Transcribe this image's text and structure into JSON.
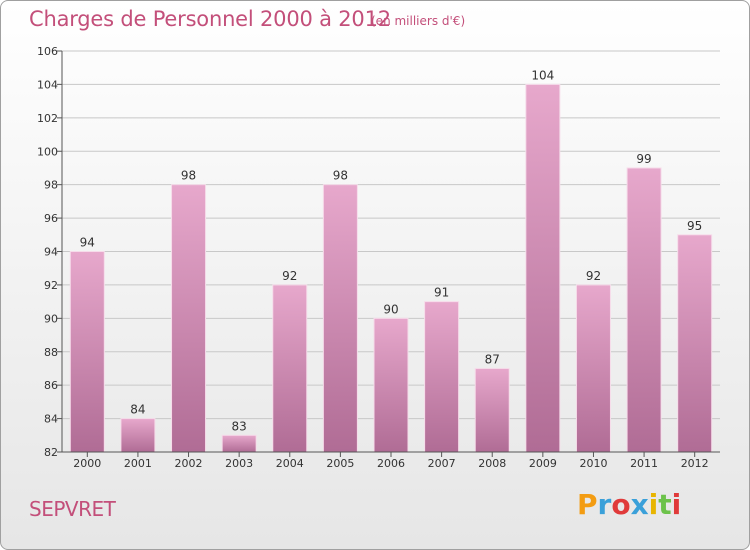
{
  "header": {
    "title": "Charges de Personnel 2000 à 2012",
    "subtitle": "(en milliers d'€)"
  },
  "footer": {
    "place": "SEPVRET",
    "logo": "Proxiti",
    "logo_colors": [
      "#f39c12",
      "#3aa0d9",
      "#e03a3a",
      "#3aa0d9",
      "#e8b500",
      "#6cc24a",
      "#e03a3a"
    ]
  },
  "colors": {
    "title": "#c34f7a",
    "bar_top": "#e7a8cc",
    "bar_bottom": "#b06c95"
  },
  "chart_data": {
    "type": "bar",
    "title": "Charges de Personnel 2000 à 2012",
    "subtitle": "(en milliers d'€)",
    "categories": [
      "2000",
      "2001",
      "2002",
      "2003",
      "2004",
      "2005",
      "2006",
      "2007",
      "2008",
      "2009",
      "2010",
      "2011",
      "2012"
    ],
    "values": [
      94,
      84,
      98,
      83,
      92,
      98,
      90,
      91,
      87,
      104,
      92,
      99,
      95
    ],
    "ylim": [
      82,
      106
    ],
    "yticks": [
      82,
      84,
      86,
      88,
      90,
      92,
      94,
      96,
      98,
      100,
      102,
      104,
      106
    ],
    "grid": "horizontal",
    "legend": "none"
  }
}
